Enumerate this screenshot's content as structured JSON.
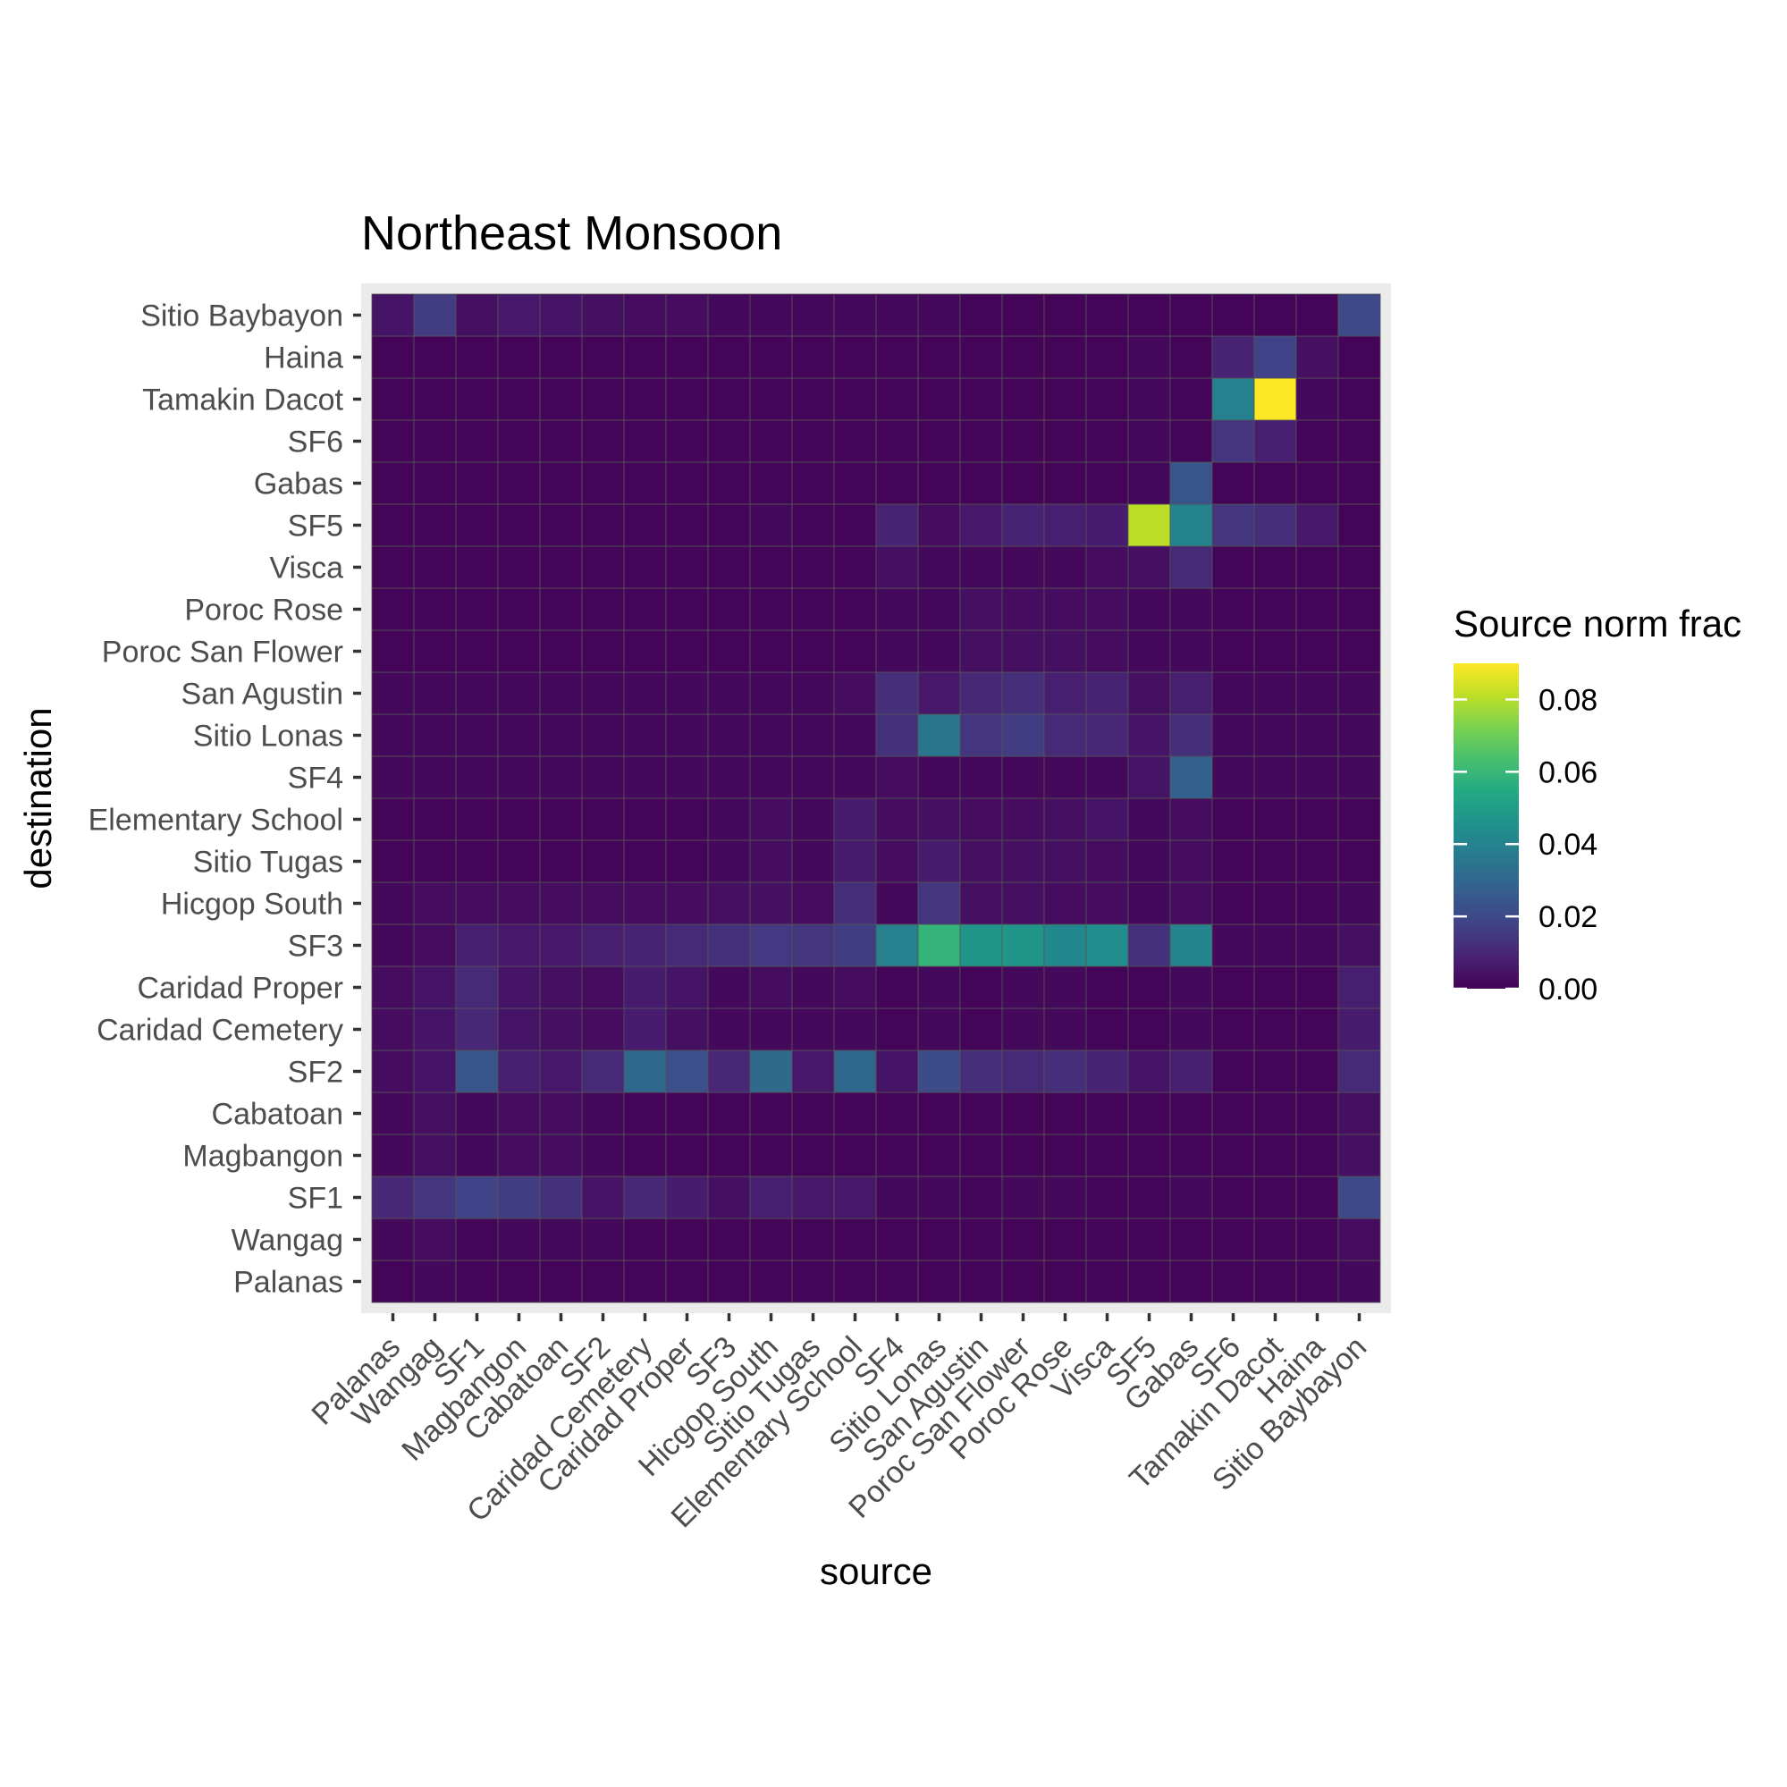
{
  "chart_data": {
    "type": "heatmap",
    "title": "Northeast Monsoon",
    "xlabel": "source",
    "ylabel": "destination",
    "x_categories": [
      "Palanas",
      "Wangag",
      "SF1",
      "Magbangon",
      "Cabatoan",
      "SF2",
      "Caridad Cemetery",
      "Caridad Proper",
      "SF3",
      "Hicgop South",
      "Sitio Tugas",
      "Elementary School",
      "SF4",
      "Sitio Lonas",
      "San Agustin",
      "Poroc San Flower",
      "Poroc Rose",
      "Visca",
      "SF5",
      "Gabas",
      "SF6",
      "Tamakin Dacot",
      "Haina",
      "Sitio Baybayon"
    ],
    "y_categories": [
      "Palanas",
      "Wangag",
      "SF1",
      "Magbangon",
      "Cabatoan",
      "SF2",
      "Caridad Cemetery",
      "Caridad Proper",
      "SF3",
      "Hicgop South",
      "Sitio Tugas",
      "Elementary School",
      "SF4",
      "Sitio Lonas",
      "San Agustin",
      "Poroc San Flower",
      "Poroc Rose",
      "Visca",
      "SF5",
      "Gabas",
      "SF6",
      "Tamakin Dacot",
      "Haina",
      "Sitio Baybayon"
    ],
    "values": [
      [
        0.001,
        0.002,
        0.001,
        0.001,
        0.001,
        0.001,
        0.001,
        0.001,
        0.001,
        0.001,
        0.001,
        0.001,
        0.001,
        0.001,
        0.001,
        0.001,
        0.001,
        0.001,
        0.001,
        0.001,
        0.001,
        0.001,
        0.001,
        0.002
      ],
      [
        0.002,
        0.003,
        0.001,
        0.002,
        0.002,
        0.002,
        0.001,
        0.001,
        0.001,
        0.001,
        0.001,
        0.001,
        0.001,
        0.001,
        0.001,
        0.001,
        0.001,
        0.001,
        0.001,
        0.001,
        0.001,
        0.001,
        0.001,
        0.003
      ],
      [
        0.01,
        0.014,
        0.018,
        0.016,
        0.013,
        0.005,
        0.01,
        0.007,
        0.004,
        0.008,
        0.006,
        0.006,
        0.002,
        0.002,
        0.001,
        0.002,
        0.002,
        0.001,
        0.001,
        0.002,
        0.001,
        0.001,
        0.001,
        0.02
      ],
      [
        0.002,
        0.004,
        0.002,
        0.003,
        0.003,
        0.002,
        0.001,
        0.001,
        0.001,
        0.001,
        0.001,
        0.001,
        0.001,
        0.001,
        0.001,
        0.001,
        0.001,
        0.001,
        0.001,
        0.001,
        0.001,
        0.001,
        0.001,
        0.004
      ],
      [
        0.002,
        0.004,
        0.002,
        0.003,
        0.003,
        0.002,
        0.001,
        0.001,
        0.001,
        0.001,
        0.001,
        0.001,
        0.001,
        0.001,
        0.001,
        0.001,
        0.001,
        0.001,
        0.001,
        0.001,
        0.001,
        0.001,
        0.001,
        0.004
      ],
      [
        0.003,
        0.005,
        0.024,
        0.008,
        0.006,
        0.011,
        0.03,
        0.022,
        0.01,
        0.031,
        0.006,
        0.03,
        0.005,
        0.021,
        0.012,
        0.011,
        0.012,
        0.009,
        0.005,
        0.008,
        0.001,
        0.001,
        0.001,
        0.011
      ],
      [
        0.003,
        0.005,
        0.01,
        0.005,
        0.004,
        0.003,
        0.007,
        0.004,
        0.002,
        0.002,
        0.002,
        0.002,
        0.001,
        0.002,
        0.001,
        0.002,
        0.002,
        0.001,
        0.001,
        0.002,
        0.001,
        0.001,
        0.001,
        0.007
      ],
      [
        0.003,
        0.005,
        0.011,
        0.005,
        0.004,
        0.003,
        0.007,
        0.005,
        0.002,
        0.003,
        0.002,
        0.003,
        0.001,
        0.002,
        0.001,
        0.002,
        0.002,
        0.001,
        0.001,
        0.002,
        0.001,
        0.001,
        0.001,
        0.008
      ],
      [
        0.002,
        0.003,
        0.008,
        0.006,
        0.006,
        0.008,
        0.009,
        0.011,
        0.013,
        0.015,
        0.014,
        0.016,
        0.039,
        0.059,
        0.047,
        0.047,
        0.042,
        0.044,
        0.013,
        0.04,
        0.002,
        0.002,
        0.002,
        0.004
      ],
      [
        0.002,
        0.003,
        0.003,
        0.003,
        0.003,
        0.003,
        0.003,
        0.003,
        0.004,
        0.004,
        0.003,
        0.012,
        0.002,
        0.014,
        0.004,
        0.004,
        0.003,
        0.003,
        0.002,
        0.003,
        0.001,
        0.001,
        0.001,
        0.002
      ],
      [
        0.001,
        0.001,
        0.001,
        0.001,
        0.001,
        0.001,
        0.001,
        0.001,
        0.002,
        0.003,
        0.002,
        0.007,
        0.003,
        0.007,
        0.004,
        0.004,
        0.004,
        0.003,
        0.002,
        0.003,
        0.001,
        0.001,
        0.001,
        0.001
      ],
      [
        0.001,
        0.001,
        0.001,
        0.001,
        0.001,
        0.001,
        0.001,
        0.001,
        0.002,
        0.003,
        0.002,
        0.007,
        0.003,
        0.004,
        0.003,
        0.003,
        0.004,
        0.005,
        0.002,
        0.003,
        0.001,
        0.001,
        0.001,
        0.001
      ],
      [
        0.002,
        0.002,
        0.002,
        0.002,
        0.002,
        0.002,
        0.002,
        0.002,
        0.002,
        0.002,
        0.002,
        0.002,
        0.003,
        0.002,
        0.002,
        0.002,
        0.002,
        0.002,
        0.005,
        0.028,
        0.002,
        0.002,
        0.002,
        0.002
      ],
      [
        0.002,
        0.002,
        0.002,
        0.002,
        0.002,
        0.002,
        0.002,
        0.002,
        0.002,
        0.002,
        0.002,
        0.002,
        0.013,
        0.035,
        0.014,
        0.016,
        0.011,
        0.01,
        0.005,
        0.012,
        0.002,
        0.002,
        0.002,
        0.002
      ],
      [
        0.002,
        0.002,
        0.002,
        0.002,
        0.002,
        0.002,
        0.002,
        0.002,
        0.002,
        0.002,
        0.002,
        0.003,
        0.012,
        0.006,
        0.01,
        0.012,
        0.008,
        0.009,
        0.004,
        0.008,
        0.002,
        0.002,
        0.002,
        0.002
      ],
      [
        0.001,
        0.001,
        0.001,
        0.001,
        0.001,
        0.001,
        0.001,
        0.001,
        0.001,
        0.001,
        0.001,
        0.001,
        0.002,
        0.002,
        0.004,
        0.004,
        0.004,
        0.003,
        0.002,
        0.002,
        0.001,
        0.001,
        0.001,
        0.001
      ],
      [
        0.001,
        0.001,
        0.001,
        0.001,
        0.001,
        0.001,
        0.001,
        0.001,
        0.001,
        0.001,
        0.001,
        0.001,
        0.002,
        0.002,
        0.004,
        0.003,
        0.003,
        0.003,
        0.002,
        0.002,
        0.001,
        0.001,
        0.001,
        0.001
      ],
      [
        0.001,
        0.001,
        0.001,
        0.001,
        0.001,
        0.001,
        0.001,
        0.001,
        0.001,
        0.001,
        0.001,
        0.001,
        0.004,
        0.002,
        0.002,
        0.002,
        0.002,
        0.003,
        0.004,
        0.011,
        0.001,
        0.001,
        0.001,
        0.001
      ],
      [
        0.001,
        0.001,
        0.001,
        0.001,
        0.001,
        0.001,
        0.001,
        0.001,
        0.001,
        0.002,
        0.001,
        0.001,
        0.009,
        0.003,
        0.006,
        0.009,
        0.008,
        0.007,
        0.081,
        0.04,
        0.014,
        0.012,
        0.006,
        0.001
      ],
      [
        0.001,
        0.001,
        0.001,
        0.001,
        0.001,
        0.001,
        0.001,
        0.001,
        0.001,
        0.001,
        0.001,
        0.001,
        0.001,
        0.001,
        0.001,
        0.001,
        0.001,
        0.001,
        0.002,
        0.024,
        0.001,
        0.001,
        0.001,
        0.001
      ],
      [
        0.001,
        0.001,
        0.001,
        0.001,
        0.001,
        0.001,
        0.001,
        0.001,
        0.001,
        0.001,
        0.001,
        0.001,
        0.001,
        0.001,
        0.001,
        0.001,
        0.001,
        0.001,
        0.002,
        0.001,
        0.014,
        0.008,
        0.001,
        0.001
      ],
      [
        0.001,
        0.001,
        0.001,
        0.001,
        0.001,
        0.001,
        0.001,
        0.001,
        0.001,
        0.001,
        0.001,
        0.001,
        0.001,
        0.001,
        0.001,
        0.001,
        0.001,
        0.001,
        0.002,
        0.001,
        0.039,
        0.09,
        0.002,
        0.001
      ],
      [
        0.001,
        0.001,
        0.001,
        0.001,
        0.001,
        0.001,
        0.001,
        0.001,
        0.001,
        0.001,
        0.001,
        0.001,
        0.001,
        0.001,
        0.001,
        0.001,
        0.001,
        0.001,
        0.002,
        0.001,
        0.009,
        0.018,
        0.004,
        0.001
      ],
      [
        0.005,
        0.016,
        0.004,
        0.006,
        0.005,
        0.004,
        0.003,
        0.003,
        0.002,
        0.002,
        0.002,
        0.002,
        0.002,
        0.002,
        0.001,
        0.001,
        0.001,
        0.001,
        0.001,
        0.001,
        0.001,
        0.001,
        0.001,
        0.02
      ]
    ],
    "value_note": "values[row][col]: row index follows y_categories (Palanas at bottom), col index follows x_categories",
    "colorbar": {
      "title": "Source norm frac",
      "colormap": "viridis",
      "range": [
        0,
        0.09
      ],
      "ticks": [
        0,
        0.02,
        0.04,
        0.06,
        0.08
      ],
      "tick_labels": [
        "0.00",
        "0.02",
        "0.04",
        "0.06",
        "0.08"
      ]
    },
    "legend_position": "right",
    "grid": true
  }
}
